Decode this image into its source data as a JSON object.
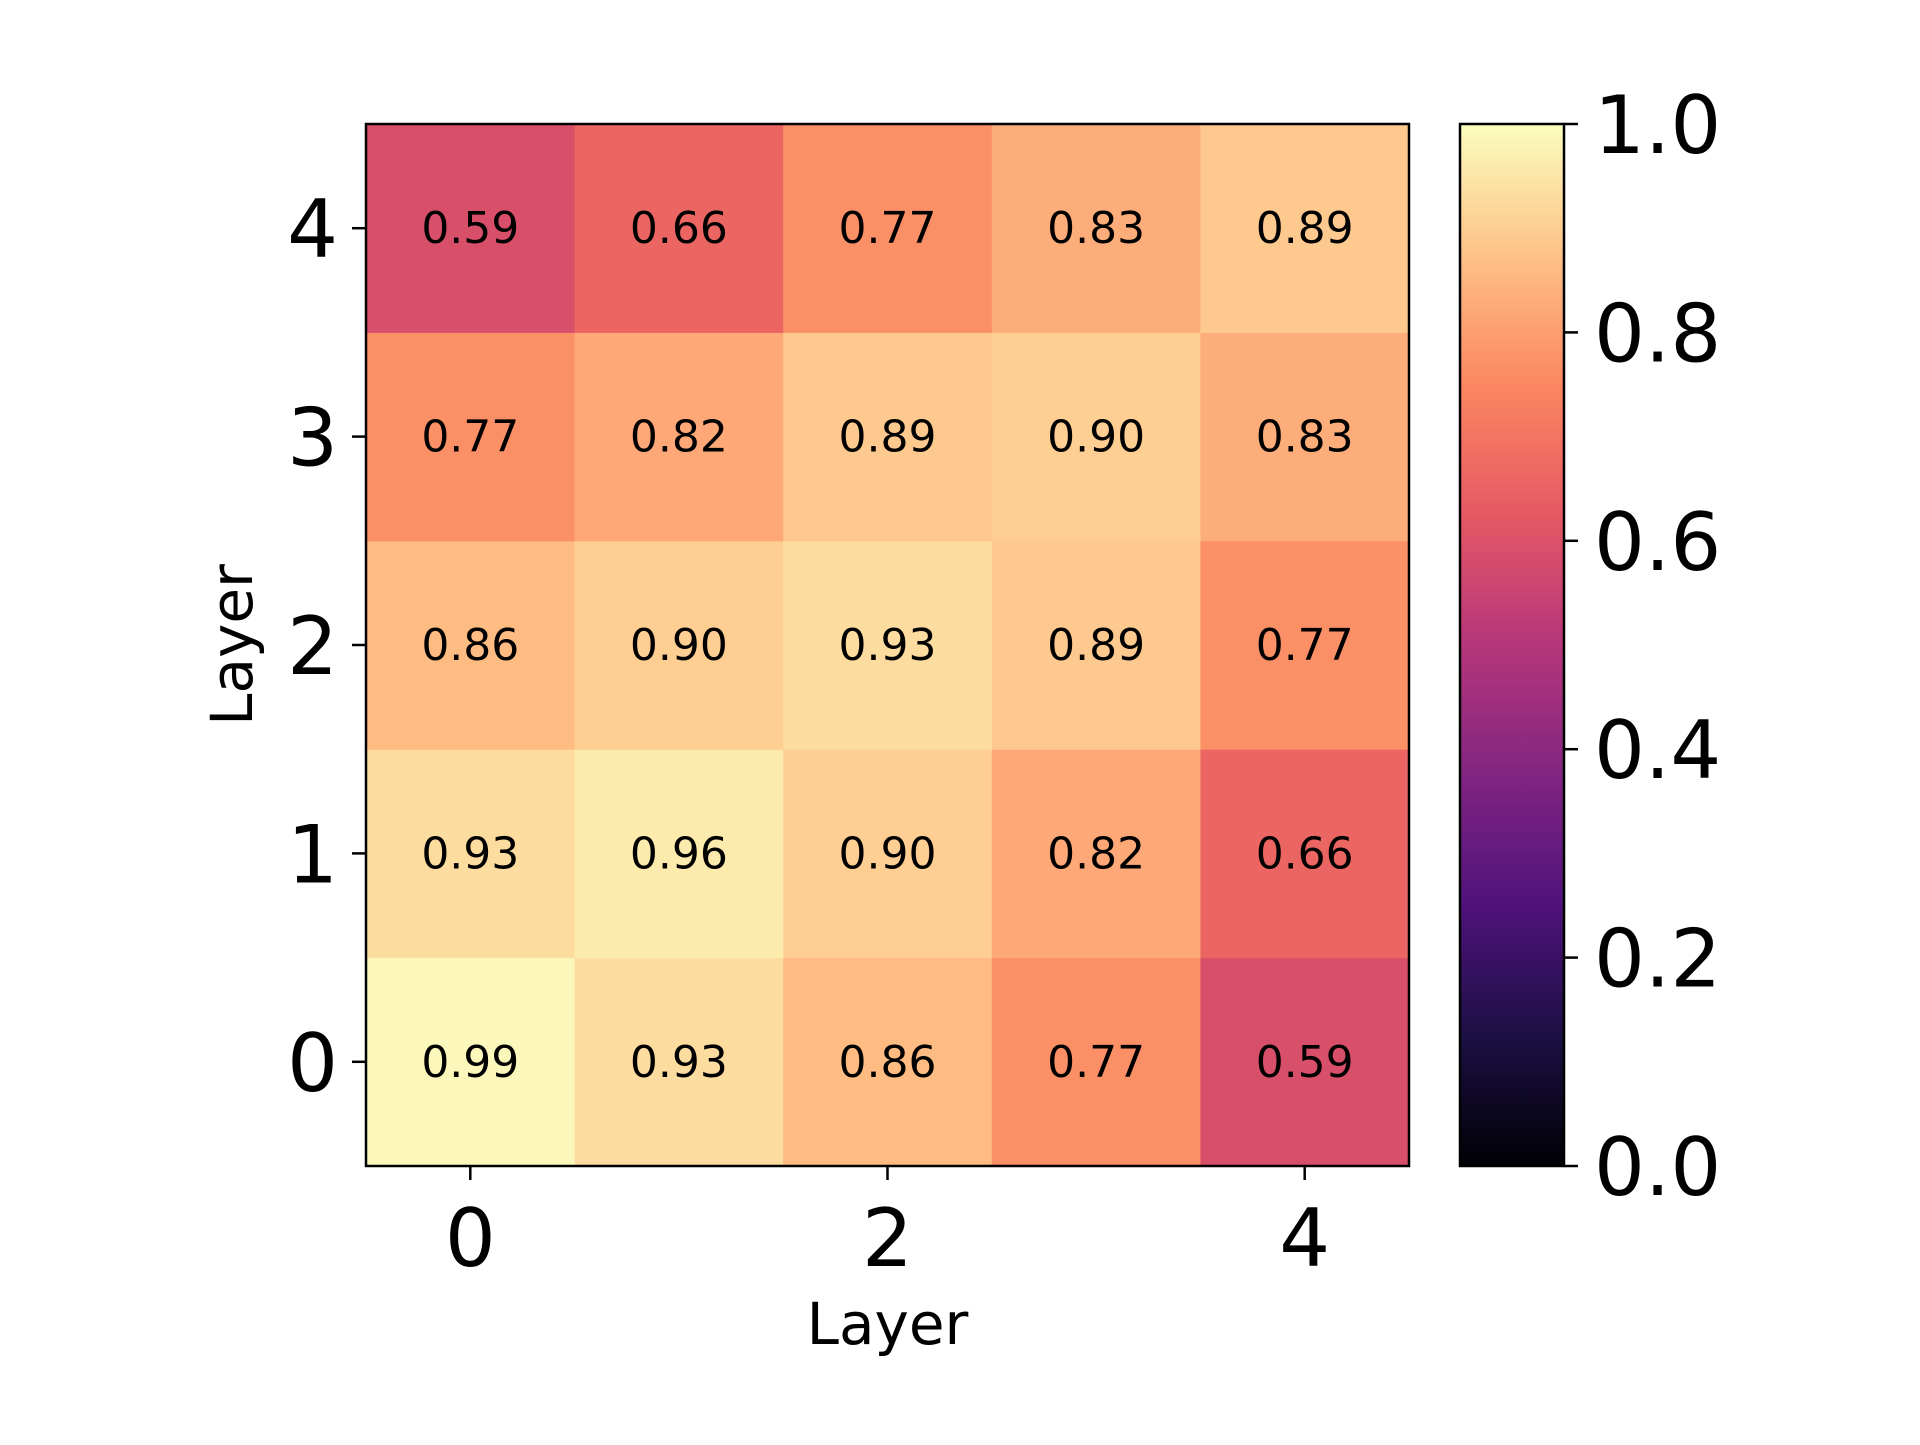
{
  "chart_data": {
    "type": "heatmap",
    "xlabel": "Layer",
    "ylabel": "Layer",
    "x_categories": [
      0,
      1,
      2,
      3,
      4
    ],
    "y_categories": [
      0,
      1,
      2,
      3,
      4
    ],
    "x_ticks": [
      "0",
      "2",
      "4"
    ],
    "y_ticks": [
      "0",
      "1",
      "2",
      "3",
      "4"
    ],
    "values": [
      [
        0.99,
        0.93,
        0.86,
        0.77,
        0.59
      ],
      [
        0.93,
        0.96,
        0.9,
        0.82,
        0.66
      ],
      [
        0.86,
        0.9,
        0.93,
        0.89,
        0.77
      ],
      [
        0.77,
        0.82,
        0.89,
        0.9,
        0.83
      ],
      [
        0.59,
        0.66,
        0.77,
        0.83,
        0.89
      ]
    ],
    "value_labels": [
      [
        "0.99",
        "0.93",
        "0.86",
        "0.77",
        "0.59"
      ],
      [
        "0.93",
        "0.96",
        "0.90",
        "0.82",
        "0.66"
      ],
      [
        "0.86",
        "0.90",
        "0.93",
        "0.89",
        "0.77"
      ],
      [
        "0.77",
        "0.82",
        "0.89",
        "0.90",
        "0.83"
      ],
      [
        "0.59",
        "0.66",
        "0.77",
        "0.83",
        "0.89"
      ]
    ],
    "colormap": "magma",
    "colorbar": {
      "range": [
        0.0,
        1.0
      ],
      "ticks": [
        "0.0",
        "0.2",
        "0.4",
        "0.6",
        "0.8",
        "1.0"
      ]
    },
    "grid": false,
    "legend": "colorbar-right"
  }
}
